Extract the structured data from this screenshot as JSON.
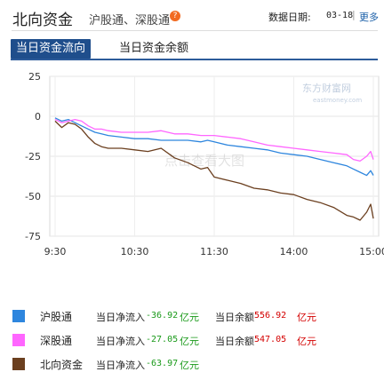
{
  "header": {
    "title": "北向资金",
    "subtitle": "沪股通、深股通",
    "help_glyph": "?",
    "date_label": "数据日期:",
    "date_value": "03-18",
    "separator": "|",
    "more_label": "更多"
  },
  "tabs": [
    {
      "label": "当日资金流向",
      "active": true
    },
    {
      "label": "当日资金余额",
      "active": false
    }
  ],
  "watermark": {
    "brand": "东方财富网",
    "domain": "eastmoney.com",
    "center_text": "点击查看大图"
  },
  "colors": {
    "hgt": "#2e86de",
    "sgt": "#ff66ff",
    "north": "#6b3f1f",
    "accent": "#1f4e8c",
    "positive": "#d40000",
    "negative": "#1a9a1a"
  },
  "chart_data": {
    "type": "line",
    "x_ticks": [
      "9:30",
      "10:30",
      "11:30",
      "14:00",
      "15:00"
    ],
    "y_ticks": [
      "25",
      "0",
      "-25",
      "-50",
      "-75"
    ],
    "ylim": [
      -75,
      25
    ],
    "y_unit": "亿元",
    "grid": true,
    "series": [
      {
        "name": "沪股通",
        "color_key": "hgt",
        "values": [
          [
            0,
            -1
          ],
          [
            5,
            -3
          ],
          [
            10,
            -2
          ],
          [
            15,
            -4
          ],
          [
            20,
            -6
          ],
          [
            25,
            -8
          ],
          [
            30,
            -10
          ],
          [
            35,
            -11
          ],
          [
            40,
            -12
          ],
          [
            50,
            -13
          ],
          [
            60,
            -14
          ],
          [
            70,
            -14
          ],
          [
            80,
            -15
          ],
          [
            90,
            -15
          ],
          [
            100,
            -15
          ],
          [
            110,
            -16
          ],
          [
            115,
            -15
          ],
          [
            120,
            -16
          ],
          [
            130,
            -18
          ],
          [
            140,
            -19
          ],
          [
            150,
            -20
          ],
          [
            160,
            -21
          ],
          [
            170,
            -23
          ],
          [
            180,
            -24
          ],
          [
            190,
            -25
          ],
          [
            200,
            -27
          ],
          [
            210,
            -29
          ],
          [
            220,
            -31
          ],
          [
            225,
            -33
          ],
          [
            230,
            -35
          ],
          [
            235,
            -37
          ],
          [
            238,
            -34
          ],
          [
            240,
            -36.92
          ]
        ]
      },
      {
        "name": "深股通",
        "color_key": "sgt",
        "values": [
          [
            0,
            -2
          ],
          [
            5,
            -4
          ],
          [
            10,
            -3
          ],
          [
            15,
            -2
          ],
          [
            20,
            -3
          ],
          [
            25,
            -6
          ],
          [
            30,
            -8
          ],
          [
            35,
            -8
          ],
          [
            40,
            -9
          ],
          [
            50,
            -10
          ],
          [
            60,
            -10
          ],
          [
            70,
            -10
          ],
          [
            80,
            -9
          ],
          [
            90,
            -11
          ],
          [
            100,
            -11
          ],
          [
            110,
            -12
          ],
          [
            120,
            -12
          ],
          [
            130,
            -13
          ],
          [
            140,
            -14
          ],
          [
            150,
            -16
          ],
          [
            160,
            -18
          ],
          [
            170,
            -19
          ],
          [
            180,
            -20
          ],
          [
            190,
            -21
          ],
          [
            200,
            -22
          ],
          [
            210,
            -23
          ],
          [
            220,
            -24
          ],
          [
            225,
            -27
          ],
          [
            230,
            -28
          ],
          [
            235,
            -25
          ],
          [
            238,
            -22
          ],
          [
            240,
            -27.05
          ]
        ]
      },
      {
        "name": "北向资金",
        "color_key": "north",
        "values": [
          [
            0,
            -3
          ],
          [
            5,
            -7
          ],
          [
            10,
            -4
          ],
          [
            15,
            -5
          ],
          [
            20,
            -8
          ],
          [
            25,
            -13
          ],
          [
            30,
            -17
          ],
          [
            35,
            -19
          ],
          [
            40,
            -20
          ],
          [
            50,
            -20
          ],
          [
            60,
            -21
          ],
          [
            70,
            -22
          ],
          [
            80,
            -20
          ],
          [
            90,
            -26
          ],
          [
            100,
            -29
          ],
          [
            110,
            -33
          ],
          [
            115,
            -32
          ],
          [
            120,
            -38
          ],
          [
            130,
            -40
          ],
          [
            140,
            -42
          ],
          [
            150,
            -45
          ],
          [
            160,
            -46
          ],
          [
            170,
            -48
          ],
          [
            180,
            -49
          ],
          [
            190,
            -52
          ],
          [
            200,
            -54
          ],
          [
            210,
            -57
          ],
          [
            220,
            -62
          ],
          [
            225,
            -63
          ],
          [
            230,
            -65
          ],
          [
            235,
            -60
          ],
          [
            238,
            -55
          ],
          [
            240,
            -63.97
          ]
        ]
      }
    ]
  },
  "legend": [
    {
      "name": "沪股通",
      "color_key": "hgt",
      "flow_label": "当日净流入",
      "flow_value": "-36.92",
      "flow_unit": "亿元",
      "balance_label": "当日余额",
      "balance_value": "556.92",
      "balance_unit": "亿元"
    },
    {
      "name": "深股通",
      "color_key": "sgt",
      "flow_label": "当日净流入",
      "flow_value": "-27.05",
      "flow_unit": "亿元",
      "balance_label": "当日余额",
      "balance_value": "547.05",
      "balance_unit": "亿元"
    },
    {
      "name": "北向资金",
      "color_key": "north",
      "flow_label": "当日净流入",
      "flow_value": "-63.97",
      "flow_unit": "亿元"
    }
  ]
}
